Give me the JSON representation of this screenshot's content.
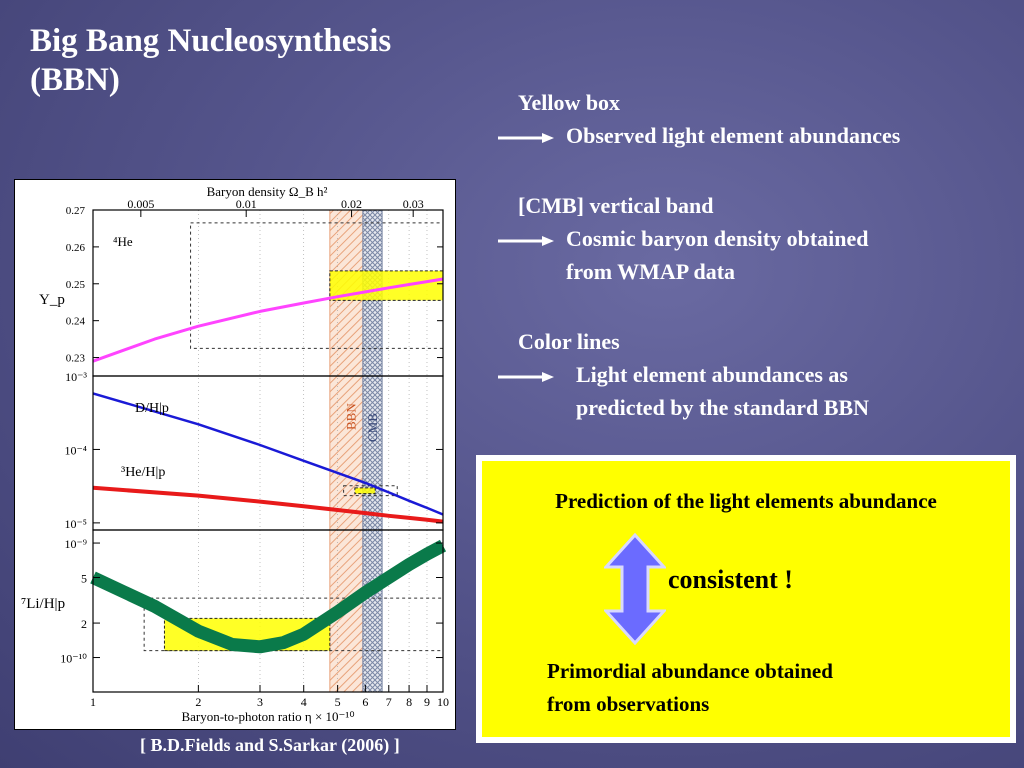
{
  "slide": {
    "title_line1": "Big Bang Nucleosynthesis",
    "title_line2": "(BBN)",
    "notes": [
      {
        "head": "Yellow box",
        "desc": [
          "Observed light element abundances"
        ]
      },
      {
        "head": "[CMB] vertical band",
        "desc": [
          "Cosmic baryon density obtained",
          "from WMAP data"
        ]
      },
      {
        "head": "Color lines",
        "desc": [
          "Light element abundances as",
          "predicted by the standard BBN"
        ]
      }
    ],
    "citation": "[ B.D.Fields and S.Sarkar (2006) ]",
    "panel": {
      "prediction": "Prediction of the light elements abundance",
      "consistent": "consistent !",
      "primordial_line1": "Primordial abundance obtained",
      "primordial_line2": "from observations"
    },
    "colors": {
      "panel_bg": "#ffff00",
      "arrow_fill": "#6b6bff",
      "slide_bg": "#55558c"
    }
  },
  "chart_data": {
    "type": "line",
    "x_scale": "log",
    "xlim": [
      1,
      10
    ],
    "xlabel": "Baryon-to-photon ratio η × 10⁻¹⁰",
    "x_ticks": [
      1,
      2,
      3,
      4,
      5,
      6,
      7,
      8,
      9,
      10
    ],
    "top_axis": {
      "label": "Baryon density Ω_B h²",
      "ticks": [
        0.005,
        0.01,
        0.02,
        0.03
      ]
    },
    "bands": [
      {
        "label": "BBN",
        "x_range": [
          4.75,
          6.2
        ],
        "color": "#e8a27a"
      },
      {
        "label": "CMB",
        "x_range": [
          5.9,
          6.7
        ],
        "color": "#7a87a5"
      }
    ],
    "panels": [
      {
        "name": "He4",
        "ylabel": "Y_p",
        "ylim": [
          0.225,
          0.27
        ],
        "y_scale": "linear",
        "y_ticks": [
          0.23,
          0.24,
          0.25,
          0.26,
          0.27
        ],
        "annotation": "⁴He",
        "series": [
          {
            "name": "Y_p",
            "color": "#ff44ff",
            "x": [
              1,
              1.5,
              2,
              3,
              4,
              5,
              6,
              7,
              8,
              9,
              10
            ],
            "y": [
              0.229,
              0.235,
              0.2385,
              0.2425,
              0.2448,
              0.2465,
              0.2478,
              0.2489,
              0.2498,
              0.2506,
              0.2513
            ]
          }
        ],
        "observed_box": {
          "x_range": [
            4.75,
            10
          ],
          "y_range": [
            0.2455,
            0.2535
          ]
        },
        "dashed_box": {
          "x_range": [
            1.9,
            10
          ],
          "y_range": [
            0.2325,
            0.2665
          ]
        }
      },
      {
        "name": "D-He3",
        "ylim": [
          8e-06,
          0.001
        ],
        "y_scale": "log",
        "y_ticks": [
          "10⁻³",
          "10⁻⁴",
          "10⁻⁵"
        ],
        "series": [
          {
            "name": "D/H|p",
            "color": "#1a1ad6",
            "x": [
              1,
              2,
              3,
              4,
              5,
              6,
              7,
              8,
              9,
              10
            ],
            "y": [
              0.00058,
              0.00022,
              0.000115,
              7e-05,
              4.8e-05,
              3.5e-05,
              2.6e-05,
              2e-05,
              1.6e-05,
              1.3e-05
            ]
          },
          {
            "name": "³He/H|p",
            "color": "#e81a1a",
            "x": [
              1,
              2,
              3,
              4,
              5,
              6,
              7,
              8,
              9,
              10
            ],
            "y": [
              3e-05,
              2.35e-05,
              1.95e-05,
              1.68e-05,
              1.5e-05,
              1.36e-05,
              1.25e-05,
              1.17e-05,
              1.1e-05,
              1.04e-05
            ]
          }
        ],
        "observed_box": {
          "x_range": [
            5.6,
            6.4
          ],
          "y_range": [
            2.5e-05,
            3e-05
          ]
        },
        "dashed_box": {
          "x_range": [
            5.2,
            7.4
          ],
          "y_range": [
            2.35e-05,
            3.2e-05
          ]
        }
      },
      {
        "name": "Li7",
        "ylabel": "⁷Li/H|p",
        "ylim": [
          5e-11,
          1.3e-09
        ],
        "y_scale": "log",
        "y_ticks": [
          "10⁻⁹",
          "5",
          "2",
          "10⁻¹⁰"
        ],
        "series": [
          {
            "name": "⁷Li/H|p",
            "color": "#0a7a4a",
            "x": [
              1,
              1.5,
              2,
              2.5,
              3,
              3.5,
              4,
              5,
              6,
              7,
              8,
              9,
              10
            ],
            "y": [
              5e-10,
              2.8e-10,
              1.7e-10,
              1.3e-10,
              1.24e-10,
              1.35e-10,
              1.6e-10,
              2.5e-10,
              3.7e-10,
              5e-10,
              6.5e-10,
              8e-10,
              9.5e-10
            ]
          }
        ],
        "observed_box": {
          "x_range": [
            1.6,
            4.75
          ],
          "y_range": [
            1.15e-10,
            2.2e-10
          ]
        },
        "dashed_box": {
          "x_range": [
            1.4,
            10
          ],
          "y_range": [
            1.15e-10,
            3.3e-10
          ]
        }
      }
    ]
  }
}
